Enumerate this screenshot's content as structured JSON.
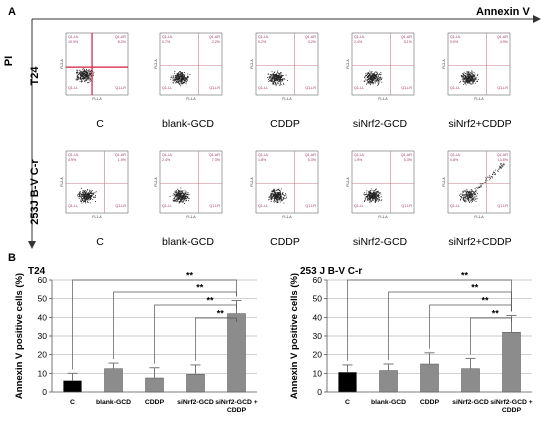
{
  "panel_a": {
    "letter": "A",
    "x_axis_label": "Annexin V",
    "y_axis_label": "PI",
    "conditions": [
      "C",
      "blank-GCD",
      "CDDP",
      "siNrf2-GCD",
      "siNrf2+CDDP"
    ],
    "rows": [
      {
        "cell_line": "T24",
        "plots": [
          {
            "q_ul": "Q1-UL",
            "ul": "10.9%",
            "q_ur": "Q1-UR",
            "ur": "8.2%",
            "q_ll": "Q1-LL",
            "q_lr": "Q1-LR"
          },
          {
            "q_ul": "Q1-UL",
            "ul": "0.7%",
            "q_ur": "Q1-UR",
            "ur": "2.2%",
            "q_ll": "Q1-LL",
            "q_lr": "Q1-LR"
          },
          {
            "q_ul": "Q1-UL",
            "ul": "0.2%",
            "q_ur": "Q1-UR",
            "ur": "0.2%",
            "q_ll": "Q1-LL",
            "q_lr": "Q1-LR"
          },
          {
            "q_ul": "Q1-UL",
            "ul": "2.4%",
            "q_ur": "Q1-UR",
            "ur": "5.1%",
            "q_ll": "Q1-LL",
            "q_lr": "Q1-LR"
          },
          {
            "q_ul": "Q1-UL",
            "ul": "0.9%",
            "q_ur": "Q1-UR",
            "ur": "4.9%",
            "q_ll": "Q1-LL",
            "q_lr": "Q1-LR"
          }
        ]
      },
      {
        "cell_line": "253J B-V C-r",
        "plots": [
          {
            "q_ul": "Q1-UL",
            "ul": "4.9%",
            "q_ur": "Q1-UR",
            "ur": "1.9%",
            "q_ll": "Q1-LL",
            "q_lr": "Q1-LR"
          },
          {
            "q_ul": "Q1-UL",
            "ul": "2.4%",
            "q_ur": "Q1-UR",
            "ur": "7.3%",
            "q_ll": "Q1-LL",
            "q_lr": "Q1-LR"
          },
          {
            "q_ul": "Q1-UL",
            "ul": "1.8%",
            "q_ur": "Q1-UR",
            "ur": "5.3%",
            "q_ll": "Q1-LL",
            "q_lr": "Q1-LR"
          },
          {
            "q_ul": "Q1-UL",
            "ul": "1.9%",
            "q_ur": "Q1-UR",
            "ur": "5.3%",
            "q_ll": "Q1-LL",
            "q_lr": "Q1-LR"
          },
          {
            "q_ul": "Q1-UL",
            "ul": "0.8%",
            "q_ur": "Q1-UR",
            "ur": "13.6%",
            "q_ll": "Q1-LL",
            "q_lr": "Q1-LR"
          }
        ]
      }
    ],
    "plot_x_label": "FL1-A",
    "plot_y_label": "FL2-A"
  },
  "panel_b": {
    "letter": "B"
  },
  "chart_data": [
    {
      "type": "bar",
      "title": "T24",
      "ylabel": "Annexin V positive cells (%)",
      "categories": [
        "C",
        "blank-GCD",
        "CDDP",
        "siNrf2-GCD",
        "siNrf2-GCD + CDDP"
      ],
      "values": [
        6,
        12.5,
        7.5,
        9.5,
        42
      ],
      "errors": [
        4,
        3,
        5.5,
        5,
        7
      ],
      "bar_colors": [
        "#000000",
        "#8c8c8c",
        "#8c8c8c",
        "#8c8c8c",
        "#8c8c8c"
      ],
      "ylim": [
        0,
        60
      ],
      "yticks": [
        0,
        10,
        20,
        30,
        40,
        50,
        60
      ],
      "grid": true,
      "significance": [
        "**",
        "**",
        "**",
        "**"
      ]
    },
    {
      "type": "bar",
      "title": "253 J B-V C-r",
      "ylabel": "Annexin V positive cells (%)",
      "categories": [
        "C",
        "blank-GCD",
        "CDDP",
        "siNrf2-GCD",
        "siNrf2-GCD + CDDP"
      ],
      "values": [
        10.5,
        11.5,
        15,
        12.5,
        32
      ],
      "errors": [
        4,
        3.5,
        6,
        5.5,
        9
      ],
      "bar_colors": [
        "#000000",
        "#8c8c8c",
        "#8c8c8c",
        "#8c8c8c",
        "#8c8c8c"
      ],
      "ylim": [
        0,
        60
      ],
      "yticks": [
        0,
        10,
        20,
        30,
        40,
        50,
        60
      ],
      "grid": true,
      "significance": [
        "**",
        "**",
        "**",
        "**"
      ]
    }
  ]
}
